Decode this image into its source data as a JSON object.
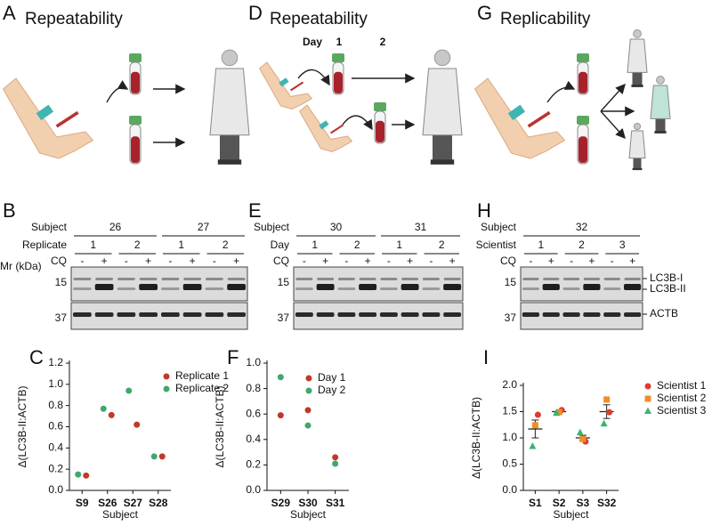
{
  "panels": {
    "A": {
      "label": "A",
      "title": "Repeatability"
    },
    "D": {
      "label": "D",
      "title": "Repeatability",
      "day_label": "Day",
      "days": [
        "1",
        "2"
      ]
    },
    "G": {
      "label": "G",
      "title": "Replicability"
    },
    "B": {
      "label": "B",
      "row1_label": "Subject",
      "row1": [
        "26",
        "27"
      ],
      "row2_label": "Replicate",
      "row2": [
        "1",
        "2",
        "1",
        "2"
      ],
      "cq_label": "CQ",
      "cq": [
        "-",
        "+",
        "-",
        "+",
        "-",
        "+",
        "-",
        "+"
      ],
      "mr_label": "Mr (kDa)",
      "markers": [
        15,
        37
      ]
    },
    "E": {
      "label": "E",
      "row1_label": "Subject",
      "row1": [
        "30",
        "31"
      ],
      "row2_label": "Day",
      "row2": [
        "1",
        "2",
        "1",
        "2"
      ],
      "cq_label": "CQ",
      "cq": [
        "-",
        "+",
        "-",
        "+",
        "-",
        "+",
        "-",
        "+"
      ],
      "markers": [
        15,
        37
      ]
    },
    "H": {
      "label": "H",
      "row1_label": "Subject",
      "row1": [
        "32"
      ],
      "row2_label": "Scientist",
      "row2": [
        "1",
        "2",
        "3"
      ],
      "cq_label": "CQ",
      "cq": [
        "-",
        "+",
        "-",
        "+",
        "-",
        "+"
      ],
      "markers": [
        15,
        37
      ],
      "band_labels": [
        "LC3B-I",
        "LC3B-II",
        "ACTB"
      ]
    }
  },
  "chart_data": [
    {
      "type": "scatter",
      "panel_label": "C",
      "ylabel": "Δ(LC3B-II:ACTB)",
      "xlabel": "Subject",
      "categories": [
        "S9",
        "S26",
        "S27",
        "S28"
      ],
      "series": [
        {
          "name": "Replicate 1",
          "color": "#c0392b",
          "marker": "circle",
          "values": [
            0.14,
            0.71,
            0.62,
            0.32
          ]
        },
        {
          "name": "Replicate 2",
          "color": "#3daa6a",
          "marker": "circle",
          "values": [
            0.15,
            0.77,
            0.94,
            0.32
          ]
        }
      ],
      "ylim": [
        0,
        1.2
      ],
      "yticks": [
        {
          "value": 0,
          "label": "0.0"
        },
        {
          "value": 0.2,
          "label": "0.2"
        },
        {
          "value": 0.4,
          "label": "0.4"
        },
        {
          "value": 0.6,
          "label": "0.6"
        },
        {
          "value": 0.8,
          "label": "0.8"
        },
        {
          "value": 1.0,
          "label": "1.0"
        },
        {
          "value": 1.2,
          "label": "1.2"
        }
      ]
    },
    {
      "type": "scatter",
      "panel_label": "F",
      "ylabel": "Δ(LC3B-II:ACTB)",
      "xlabel": "Subject",
      "categories": [
        "S29",
        "S30",
        "S31"
      ],
      "series": [
        {
          "name": "Day 1",
          "color": "#c0392b",
          "marker": "circle",
          "values": [
            0.59,
            0.63,
            0.26
          ]
        },
        {
          "name": "Day 2",
          "color": "#3daa6a",
          "marker": "circle",
          "values": [
            0.89,
            0.51,
            0.21
          ]
        }
      ],
      "ylim": [
        0,
        1.0
      ],
      "yticks": [
        {
          "value": 0,
          "label": "0.0"
        },
        {
          "value": 0.2,
          "label": "0.2"
        },
        {
          "value": 0.4,
          "label": "0.4"
        },
        {
          "value": 0.6,
          "label": "0.6"
        },
        {
          "value": 0.8,
          "label": "0.8"
        },
        {
          "value": 1.0,
          "label": "1.0"
        }
      ]
    },
    {
      "type": "scatter",
      "panel_label": "I",
      "ylabel": "Δ(LC3B-II:ACTB)",
      "xlabel": "Subject",
      "categories": [
        "S1",
        "S2",
        "S3",
        "S32"
      ],
      "series": [
        {
          "name": "Scientist 1",
          "color": "#e03a2f",
          "marker": "circle",
          "values": [
            1.44,
            1.53,
            0.93,
            1.49
          ]
        },
        {
          "name": "Scientist 2",
          "color": "#f28c28",
          "marker": "square",
          "values": [
            1.24,
            1.49,
            0.98,
            1.73
          ]
        },
        {
          "name": "Scientist 3",
          "color": "#3cb371",
          "marker": "triangle",
          "values": [
            0.84,
            1.47,
            1.1,
            1.27
          ]
        }
      ],
      "mean": [
        1.17,
        1.5,
        1.0,
        1.5
      ],
      "error": [
        0.17,
        0.02,
        0.05,
        0.13
      ],
      "ylim": [
        0,
        2.0
      ],
      "yticks": [
        {
          "value": 0,
          "label": "0.0"
        },
        {
          "value": 0.5,
          "label": "0.5"
        },
        {
          "value": 1.0,
          "label": "1.0"
        },
        {
          "value": 1.5,
          "label": "1.5"
        },
        {
          "value": 2.0,
          "label": "2.0"
        }
      ]
    }
  ]
}
